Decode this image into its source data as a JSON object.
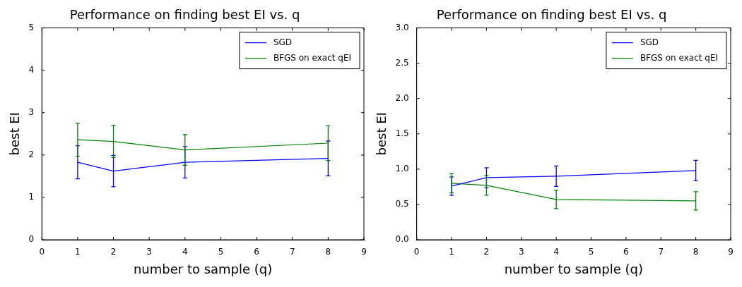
{
  "chart_data": [
    {
      "type": "line",
      "title": "Performance on finding best EI vs. q",
      "xlabel": "number to sample (q)",
      "ylabel": "best EI",
      "x": [
        1,
        2,
        4,
        8
      ],
      "series": [
        {
          "name": "SGD",
          "color": "#0000ff",
          "values": [
            1.83,
            1.62,
            1.83,
            1.92
          ],
          "errors": [
            0.39,
            0.37,
            0.37,
            0.41
          ]
        },
        {
          "name": "BFGS on exact qEI",
          "color": "#008000",
          "values": [
            2.36,
            2.32,
            2.12,
            2.28
          ],
          "errors": [
            0.39,
            0.38,
            0.36,
            0.41
          ]
        }
      ],
      "xlim": [
        0,
        9
      ],
      "xticks": [
        0,
        1,
        2,
        3,
        4,
        5,
        6,
        7,
        8,
        9
      ],
      "ylim": [
        0,
        5
      ],
      "yticks": [
        0,
        1,
        2,
        3,
        4,
        5
      ],
      "legend": "top right",
      "marker": "none",
      "line_style": "solid",
      "grid": false
    },
    {
      "type": "line",
      "title": "Performance on finding best EI vs. q",
      "xlabel": "number to sample (q)",
      "ylabel": "best EI",
      "x": [
        1,
        2,
        4,
        8
      ],
      "series": [
        {
          "name": "SGD",
          "color": "#0000ff",
          "values": [
            0.76,
            0.88,
            0.9,
            0.98
          ],
          "errors": [
            0.13,
            0.14,
            0.145,
            0.145
          ]
        },
        {
          "name": "BFGS on exact qEI",
          "color": "#008000",
          "values": [
            0.8,
            0.77,
            0.57,
            0.55
          ],
          "errors": [
            0.135,
            0.14,
            0.13,
            0.13
          ]
        }
      ],
      "xlim": [
        0,
        9
      ],
      "xticks": [
        0,
        1,
        2,
        3,
        4,
        5,
        6,
        7,
        8,
        9
      ],
      "ylim": [
        0,
        3
      ],
      "yticks": [
        {
          "value": 0,
          "label": "0.0"
        },
        {
          "value": 0.5,
          "label": "0.5"
        },
        {
          "value": 1,
          "label": "1.0"
        },
        {
          "value": 1.5,
          "label": "1.5"
        },
        {
          "value": 2,
          "label": "2.0"
        },
        {
          "value": 2.5,
          "label": "2.5"
        },
        {
          "value": 3,
          "label": "3.0"
        }
      ],
      "legend": "top right",
      "marker": "none",
      "line_style": "solid",
      "grid": false
    }
  ]
}
